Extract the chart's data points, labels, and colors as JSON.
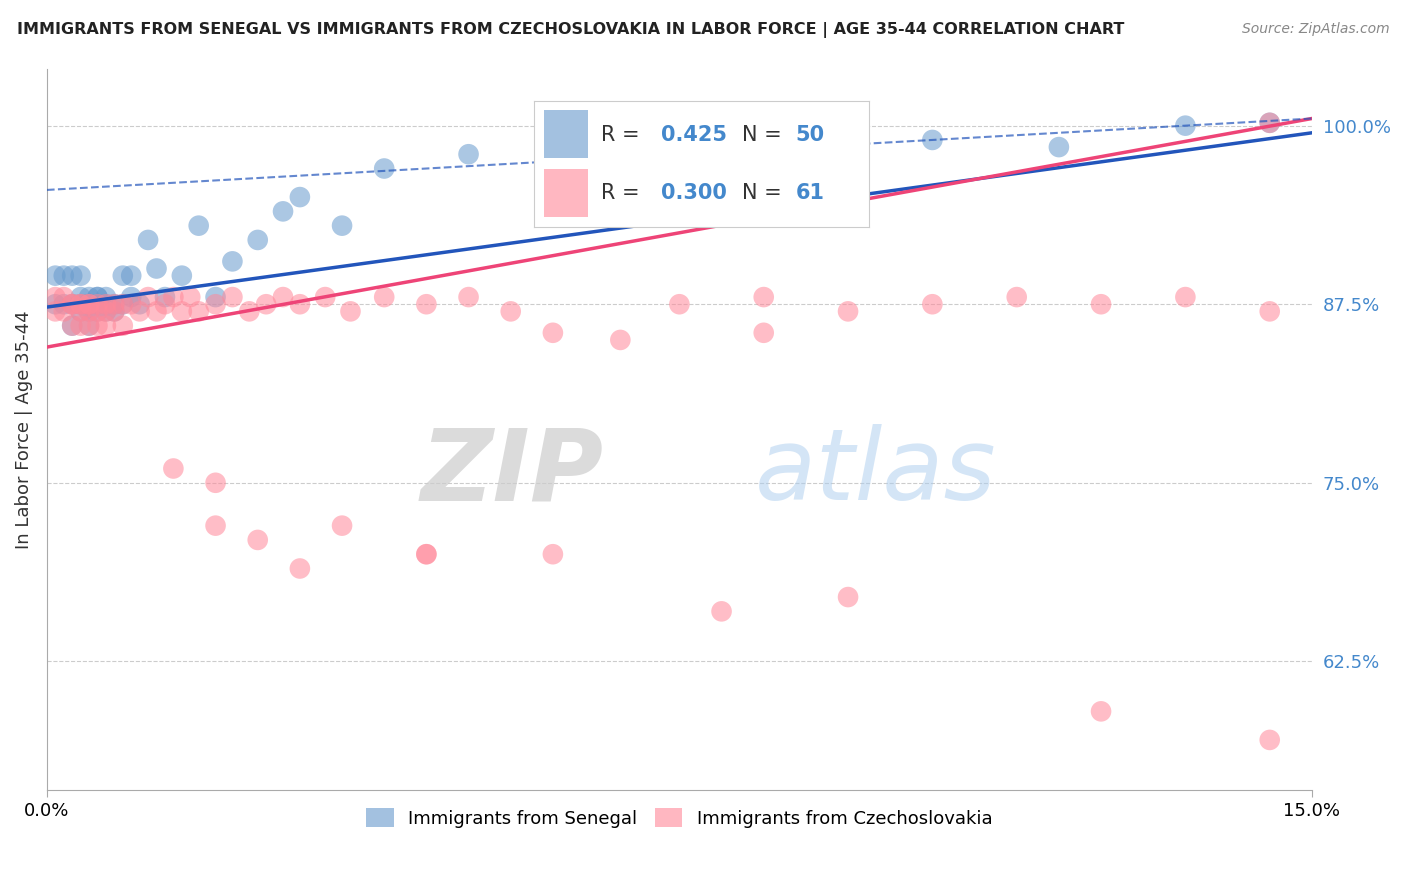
{
  "title": "IMMIGRANTS FROM SENEGAL VS IMMIGRANTS FROM CZECHOSLOVAKIA IN LABOR FORCE | AGE 35-44 CORRELATION CHART",
  "source": "Source: ZipAtlas.com",
  "ylabel_label": "In Labor Force | Age 35-44",
  "legend_blue_r": "0.425",
  "legend_blue_n": "50",
  "legend_pink_r": "0.300",
  "legend_pink_n": "61",
  "legend1_label": "Immigrants from Senegal",
  "legend2_label": "Immigrants from Czechoslovakia",
  "blue_color": "#6699CC",
  "pink_color": "#FF8899",
  "blue_line_color": "#2255BB",
  "pink_line_color": "#EE4477",
  "ytick_color": "#4488CC",
  "xlim": [
    0.0,
    0.15
  ],
  "ylim": [
    0.535,
    1.04
  ],
  "yticks": [
    0.625,
    0.75,
    0.875,
    1.0
  ],
  "ytick_labels": [
    "62.5%",
    "75.0%",
    "87.5%",
    "100.0%"
  ],
  "blue_line_x": [
    0.0,
    0.15
  ],
  "blue_line_y": [
    0.873,
    0.995
  ],
  "pink_line_x": [
    0.0,
    0.15
  ],
  "pink_line_y": [
    0.845,
    1.005
  ],
  "dash_line_x": [
    0.0,
    0.15
  ],
  "dash_line_y": [
    0.955,
    1.005
  ],
  "senegal_x": [
    0.001,
    0.001,
    0.002,
    0.002,
    0.003,
    0.003,
    0.003,
    0.004,
    0.004,
    0.004,
    0.004,
    0.005,
    0.005,
    0.005,
    0.005,
    0.005,
    0.006,
    0.006,
    0.006,
    0.006,
    0.007,
    0.007,
    0.007,
    0.008,
    0.008,
    0.009,
    0.009,
    0.01,
    0.01,
    0.011,
    0.012,
    0.013,
    0.014,
    0.016,
    0.018,
    0.02,
    0.022,
    0.025,
    0.028,
    0.03,
    0.035,
    0.04,
    0.05,
    0.06,
    0.07,
    0.09,
    0.105,
    0.12,
    0.135,
    0.145
  ],
  "senegal_y": [
    0.895,
    0.875,
    0.895,
    0.875,
    0.875,
    0.86,
    0.895,
    0.875,
    0.88,
    0.87,
    0.895,
    0.875,
    0.88,
    0.87,
    0.875,
    0.86,
    0.875,
    0.88,
    0.87,
    0.88,
    0.875,
    0.87,
    0.88,
    0.875,
    0.87,
    0.875,
    0.895,
    0.88,
    0.895,
    0.875,
    0.92,
    0.9,
    0.88,
    0.895,
    0.93,
    0.88,
    0.905,
    0.92,
    0.94,
    0.95,
    0.93,
    0.97,
    0.98,
    0.96,
    0.99,
    0.975,
    0.99,
    0.985,
    1.0,
    1.002
  ],
  "czech_x": [
    0.001,
    0.001,
    0.002,
    0.002,
    0.003,
    0.003,
    0.003,
    0.004,
    0.004,
    0.004,
    0.004,
    0.005,
    0.005,
    0.005,
    0.005,
    0.006,
    0.006,
    0.006,
    0.007,
    0.007,
    0.007,
    0.008,
    0.008,
    0.009,
    0.009,
    0.01,
    0.011,
    0.012,
    0.013,
    0.014,
    0.015,
    0.016,
    0.017,
    0.018,
    0.02,
    0.022,
    0.024,
    0.026,
    0.028,
    0.03,
    0.033,
    0.036,
    0.04,
    0.045,
    0.05,
    0.055,
    0.06,
    0.068,
    0.075,
    0.085,
    0.095,
    0.105,
    0.115,
    0.125,
    0.135,
    0.145,
    0.02,
    0.035,
    0.045,
    0.085,
    0.145
  ],
  "czech_y": [
    0.88,
    0.87,
    0.88,
    0.87,
    0.875,
    0.86,
    0.875,
    0.87,
    0.875,
    0.86,
    0.875,
    0.87,
    0.875,
    0.86,
    0.875,
    0.87,
    0.875,
    0.86,
    0.87,
    0.875,
    0.86,
    0.875,
    0.87,
    0.875,
    0.86,
    0.875,
    0.87,
    0.88,
    0.87,
    0.875,
    0.88,
    0.87,
    0.88,
    0.87,
    0.875,
    0.88,
    0.87,
    0.875,
    0.88,
    0.875,
    0.88,
    0.87,
    0.88,
    0.875,
    0.88,
    0.87,
    0.855,
    0.85,
    0.875,
    0.88,
    0.87,
    0.875,
    0.88,
    0.875,
    0.88,
    1.002,
    0.75,
    0.72,
    0.7,
    0.855,
    0.87
  ],
  "czech_outlier_x": [
    0.015,
    0.02,
    0.025,
    0.03,
    0.045,
    0.06,
    0.08,
    0.095,
    0.125,
    0.145
  ],
  "czech_outlier_y": [
    0.76,
    0.72,
    0.71,
    0.69,
    0.7,
    0.7,
    0.66,
    0.67,
    0.59,
    0.57
  ]
}
